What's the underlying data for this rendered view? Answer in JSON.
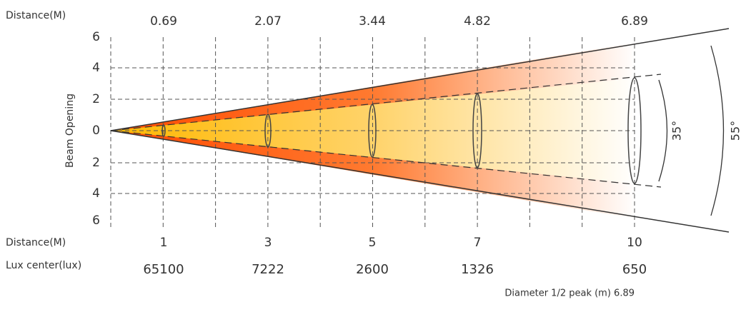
{
  "top": {
    "label": "Distance(M)",
    "diameters": [
      "0.69",
      "2.07",
      "3.44",
      "4.82",
      "6.89"
    ]
  },
  "axis": {
    "title": "Beam Opening",
    "ticks": [
      "6",
      "4",
      "2",
      "0",
      "2",
      "4",
      "6"
    ]
  },
  "bottom": {
    "distance_label": "Distance(M)",
    "distances": [
      "1",
      "3",
      "5",
      "7",
      "10"
    ],
    "lux_label": "Lux center(lux)",
    "lux": [
      "65100",
      "7222",
      "2600",
      "1326",
      "650"
    ]
  },
  "angles": {
    "inner": "35°",
    "outer": "55°"
  },
  "footnote": "Diameter 1/2 peak (m) 6.89"
}
